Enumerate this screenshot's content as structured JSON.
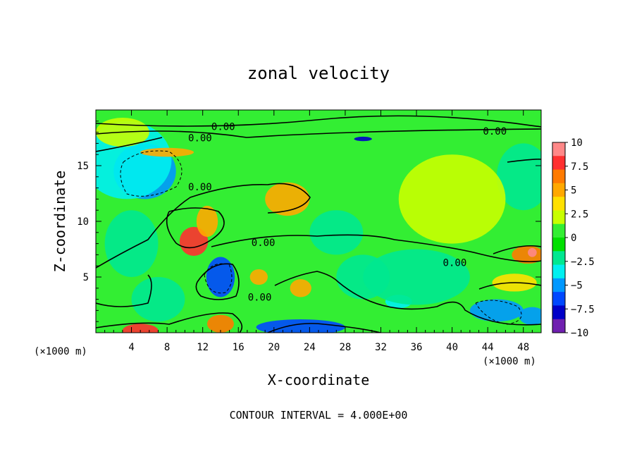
{
  "chart_data": {
    "type": "heatmap",
    "title": "zonal velocity",
    "xlabel": "X-coordinate",
    "ylabel": "Z-coordinate",
    "x_unit_left": "(×1000 m)",
    "x_unit_right": "(×1000 m)",
    "footer": "CONTOUR INTERVAL = 4.000E+00",
    "xlim": [
      0,
      50
    ],
    "ylim": [
      0,
      20
    ],
    "x_ticks": [
      4,
      8,
      12,
      16,
      20,
      24,
      28,
      32,
      36,
      40,
      44,
      48
    ],
    "y_ticks": [
      5,
      10,
      15
    ],
    "colorbar": {
      "ticks": [
        "10",
        "7.5",
        "5",
        "2.5",
        "0",
        "−2.5",
        "−5",
        "−7.5",
        "−10"
      ],
      "values": [
        10,
        7.5,
        5,
        2.5,
        0,
        -2.5,
        -5,
        -7.5,
        -10
      ],
      "colors": [
        "#ff8888",
        "#ff3030",
        "#ff7a00",
        "#ffa800",
        "#ffe000",
        "#c8ff00",
        "#33ee33",
        "#00e000",
        "#00e890",
        "#00f0f0",
        "#0098ff",
        "#0048ff",
        "#0000c8",
        "#7020b0"
      ]
    },
    "contour_labels": [
      {
        "text": "0.00",
        "x": 14.3,
        "y": 18.5
      },
      {
        "text": "0.00",
        "x": 11.7,
        "y": 17.5
      },
      {
        "text": "0.00",
        "x": 44.8,
        "y": 18.1
      },
      {
        "text": "0.00",
        "x": 11.7,
        "y": 13.1
      },
      {
        "text": "0.00",
        "x": 18.8,
        "y": 8.1
      },
      {
        "text": "0.00",
        "x": 40.3,
        "y": 6.3
      },
      {
        "text": "0.00",
        "x": 18.4,
        "y": 3.2
      }
    ],
    "blobs": [
      {
        "x": 5.5,
        "y": 14.5,
        "rx": 3.5,
        "ry": 2.5,
        "v": -5.2
      },
      {
        "x": 3.5,
        "y": 15.5,
        "rx": 5,
        "ry": 3.5,
        "v": -3
      },
      {
        "x": 11,
        "y": 8.2,
        "rx": 1.6,
        "ry": 1.3,
        "v": 8
      },
      {
        "x": 12.5,
        "y": 10,
        "rx": 1.2,
        "ry": 1.4,
        "v": 5.5
      },
      {
        "x": 21.5,
        "y": 12,
        "rx": 2.5,
        "ry": 1.5,
        "v": 4.5
      },
      {
        "x": 14,
        "y": 5,
        "rx": 1.6,
        "ry": 1.8,
        "v": -6
      },
      {
        "x": 14,
        "y": 0.8,
        "rx": 1.5,
        "ry": 0.8,
        "v": 6.5
      },
      {
        "x": 5,
        "y": 0.2,
        "rx": 2,
        "ry": 0.6,
        "v": 7.5
      },
      {
        "x": 23,
        "y": 0.5,
        "rx": 5,
        "ry": 0.7,
        "v": -6
      },
      {
        "x": 23,
        "y": 4,
        "rx": 1.2,
        "ry": 0.8,
        "v": 5.5
      },
      {
        "x": 18.3,
        "y": 5,
        "rx": 1,
        "ry": 0.7,
        "v": 5
      },
      {
        "x": 45,
        "y": 2,
        "rx": 3,
        "ry": 1,
        "v": -5.5
      },
      {
        "x": 49,
        "y": 1.5,
        "rx": 1.5,
        "ry": 0.8,
        "v": -5.5
      },
      {
        "x": 48.5,
        "y": 7,
        "rx": 1.8,
        "ry": 0.8,
        "v": 6
      },
      {
        "x": 49,
        "y": 7.2,
        "rx": 0.5,
        "ry": 0.4,
        "v": 9
      },
      {
        "x": 47,
        "y": 4.5,
        "rx": 2.5,
        "ry": 0.8,
        "v": 3.5
      },
      {
        "x": 34,
        "y": 2.8,
        "rx": 1.5,
        "ry": 0.6,
        "v": -3
      },
      {
        "x": 36,
        "y": 5,
        "rx": 6,
        "ry": 2.5,
        "v": -1.5
      },
      {
        "x": 48,
        "y": 14,
        "rx": 3,
        "ry": 3,
        "v": -2
      },
      {
        "x": 8,
        "y": 16.2,
        "rx": 3,
        "ry": 0.4,
        "v": 5
      },
      {
        "x": 30,
        "y": 17.4,
        "rx": 1,
        "ry": 0.2,
        "v": -8
      },
      {
        "x": 4,
        "y": 8,
        "rx": 3,
        "ry": 3,
        "v": -1.5
      },
      {
        "x": 27,
        "y": 9,
        "rx": 3,
        "ry": 2,
        "v": -1.5
      },
      {
        "x": 30,
        "y": 5,
        "rx": 3,
        "ry": 2,
        "v": -2.5
      },
      {
        "x": 7,
        "y": 3,
        "rx": 3,
        "ry": 2,
        "v": -2
      },
      {
        "x": 3,
        "y": 18,
        "rx": 3,
        "ry": 1.3,
        "v": 1.5
      },
      {
        "x": 40,
        "y": 12,
        "rx": 6,
        "ry": 4,
        "v": 1.5
      }
    ]
  }
}
